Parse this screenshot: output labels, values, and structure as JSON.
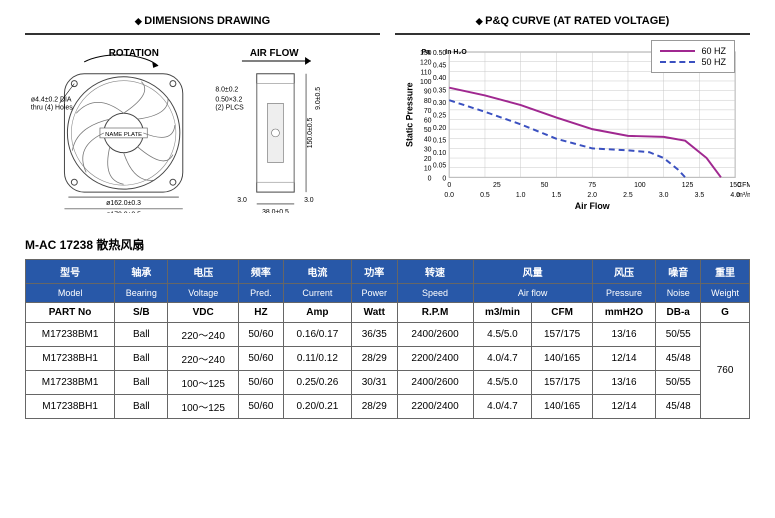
{
  "panels": {
    "dimensions_title": "DIMENSIONS DRAWING",
    "pq_title": "P&Q CURVE (AT RATED VOLTAGE)"
  },
  "diagram": {
    "rotation_label": "ROTATION",
    "airflow_label": "AIR FLOW",
    "nameplate": "NAME PLATE",
    "holes_note": "ø4.4±0.2 DIA\nthru (4) Holes",
    "dim_inner": "ø162.0±0.3",
    "dim_outer": "ø170.0±0.5",
    "dim_height": "150.0±0.5",
    "dim_depth": "38.0±0.5",
    "dim_edge": "3.0",
    "dim_slot": "8.0±0.2",
    "dim_plcs": "0.50×3.2\n(2) PLCS",
    "dim_side": "9.0±0.5"
  },
  "chart": {
    "ylabel": "Static Pressure",
    "xlabel": "Air Flow",
    "y_pa_label": "Pa",
    "y_in_label": "In H₂O",
    "x_cfm_label": "CFM",
    "x_m3_label": "m³/min",
    "y_pa_ticks": [
      0,
      10,
      20,
      30,
      40,
      50,
      60,
      70,
      80,
      90,
      100,
      110,
      120,
      130
    ],
    "y_in_ticks": [
      "0",
      "0.05",
      "0.10",
      "0.15",
      "0.20",
      "0.25",
      "0.30",
      "0.35",
      "0.40",
      "0.45",
      "0.50"
    ],
    "x_cfm_ticks": [
      0,
      25,
      50,
      75,
      100,
      125,
      150
    ],
    "x_m3_ticks": [
      "0.0",
      "0.5",
      "1.0",
      "1.5",
      "2.0",
      "2.5",
      "3.0",
      "3.5",
      "4.0"
    ],
    "series": [
      {
        "name": "60 HZ",
        "color": "#a02890",
        "dash": "none",
        "points_m3_pa": [
          [
            0.0,
            93
          ],
          [
            0.5,
            85
          ],
          [
            1.0,
            75
          ],
          [
            1.5,
            62
          ],
          [
            2.0,
            50
          ],
          [
            2.5,
            43
          ],
          [
            3.0,
            42
          ],
          [
            3.3,
            38
          ],
          [
            3.6,
            20
          ],
          [
            3.8,
            0
          ]
        ]
      },
      {
        "name": "50 HZ",
        "color": "#3a50c0",
        "dash": "6,4",
        "points_m3_pa": [
          [
            0.0,
            80
          ],
          [
            0.5,
            68
          ],
          [
            1.0,
            55
          ],
          [
            1.5,
            40
          ],
          [
            2.0,
            30
          ],
          [
            2.5,
            28
          ],
          [
            2.8,
            26
          ],
          [
            3.0,
            20
          ],
          [
            3.2,
            8
          ],
          [
            3.3,
            0
          ]
        ]
      }
    ],
    "plot": {
      "bg": "#ffffff",
      "grid": "#c8c8c8",
      "x_min_m3": 0,
      "x_max_m3": 4.0,
      "y_min_pa": 0,
      "y_max_pa": 130
    }
  },
  "table": {
    "caption": "M-AC 17238 散热风扇",
    "head_cn": [
      "型号",
      "轴承",
      "电压",
      "频率",
      "电流",
      "功率",
      "转速",
      "风量",
      "",
      "风压",
      "噪音",
      "重里"
    ],
    "head_en": [
      "Model",
      "Bearing",
      "Voltage",
      "Pred.",
      "Current",
      "Power",
      "Speed",
      "Air flow",
      "",
      "Pressure",
      "Noise",
      "Weight"
    ],
    "units": [
      "PART No",
      "S/B",
      "VDC",
      "HZ",
      "Amp",
      "Watt",
      "R.P.M",
      "m3/min",
      "CFM",
      "mmH2O",
      "DB-a",
      "G"
    ],
    "weight_merged": "760",
    "rows": [
      [
        "M17238BM1",
        "Ball",
        "220～240",
        "50/60",
        "0.16/0.17",
        "36/35",
        "2400/2600",
        "4.5/5.0",
        "157/175",
        "13/16",
        "50/55"
      ],
      [
        "M17238BH1",
        "Ball",
        "220～240",
        "50/60",
        "0.11/0.12",
        "28/29",
        "2200/2400",
        "4.0/4.7",
        "140/165",
        "12/14",
        "45/48"
      ],
      [
        "M17238BM1",
        "Ball",
        "100～125",
        "50/60",
        "0.25/0.26",
        "30/31",
        "2400/2600",
        "4.5/5.0",
        "157/175",
        "13/16",
        "50/55"
      ],
      [
        "M17238BH1",
        "Ball",
        "100～125",
        "50/60",
        "0.20/0.21",
        "28/29",
        "2200/2400",
        "4.0/4.7",
        "140/165",
        "12/14",
        "45/48"
      ]
    ]
  }
}
